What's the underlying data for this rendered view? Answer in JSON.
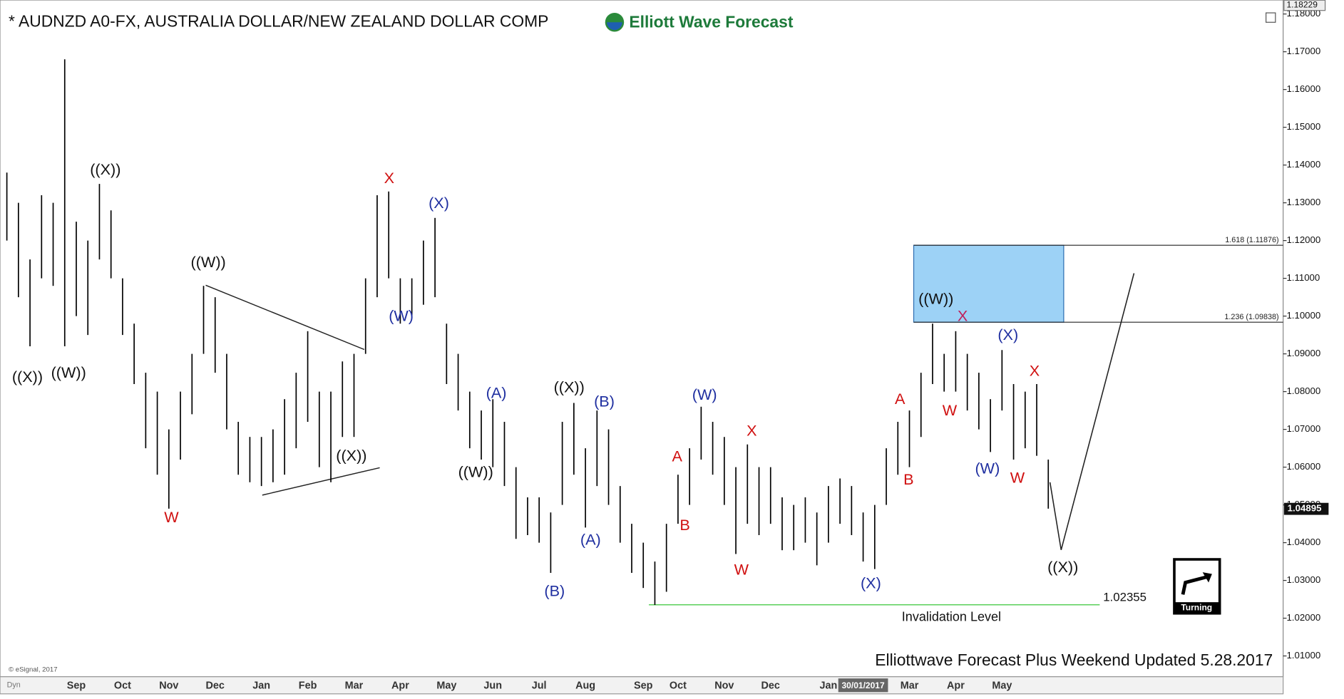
{
  "chart_data": {
    "type": "hilo",
    "title": "* AUDNZD A0-FX, AUSTRALIA DOLLAR/NEW ZEALAND DOLLAR COMP",
    "brand": "Elliott Wave Forecast",
    "footer": "Elliottwave Forecast Plus Weekend Updated 5.28.2017",
    "copyright": "© eSignal, 2017",
    "corner_label": "Dyn",
    "icon_label": "Turning",
    "color": "#000000",
    "categories": [
      null,
      null,
      null,
      null,
      null,
      null,
      "Sep",
      null,
      null,
      null,
      "Oct",
      null,
      null,
      null,
      "Nov",
      null,
      null,
      null,
      "Dec",
      null,
      null,
      null,
      "Jan",
      null,
      null,
      null,
      "Feb",
      null,
      null,
      null,
      "Mar",
      null,
      null,
      null,
      "Apr",
      null,
      null,
      null,
      "May",
      null,
      null,
      null,
      "Jun",
      null,
      null,
      null,
      "Jul",
      null,
      null,
      null,
      "Aug",
      null,
      null,
      null,
      null,
      "Sep",
      null,
      null,
      "Oct",
      null,
      null,
      null,
      "Nov",
      null,
      null,
      null,
      "Dec",
      null,
      null,
      null,
      null,
      "Jan",
      null,
      null,
      "30/01/2017",
      null,
      null,
      null,
      "Mar",
      null,
      null,
      null,
      "Apr",
      null,
      null,
      null,
      "May",
      null,
      null,
      null,
      null
    ],
    "high": [
      1.138,
      1.13,
      1.115,
      1.132,
      1.13,
      1.168,
      1.125,
      1.12,
      1.135,
      1.128,
      1.11,
      1.098,
      1.085,
      1.08,
      1.07,
      1.08,
      1.09,
      1.108,
      1.105,
      1.09,
      1.072,
      1.068,
      1.068,
      1.07,
      1.078,
      1.085,
      1.096,
      1.08,
      1.08,
      1.088,
      1.09,
      1.11,
      1.132,
      1.133,
      1.11,
      1.11,
      1.12,
      1.126,
      1.098,
      1.09,
      1.08,
      1.075,
      1.078,
      1.072,
      1.06,
      1.052,
      1.052,
      1.048,
      1.072,
      1.077,
      1.065,
      1.075,
      1.07,
      1.055,
      1.045,
      1.04,
      1.035,
      1.045,
      1.058,
      1.065,
      1.076,
      1.072,
      1.068,
      1.06,
      1.066,
      1.06,
      1.06,
      1.052,
      1.05,
      1.052,
      1.048,
      1.055,
      1.057,
      1.055,
      1.048,
      1.05,
      1.065,
      1.072,
      1.075,
      1.085,
      1.098,
      1.09,
      1.096,
      1.09,
      1.085,
      1.078,
      1.091,
      1.082,
      1.08,
      1.082,
      1.062
    ],
    "low": [
      1.12,
      1.105,
      1.092,
      1.11,
      1.108,
      1.092,
      1.1,
      1.095,
      1.115,
      1.11,
      1.095,
      1.082,
      1.065,
      1.058,
      1.049,
      1.062,
      1.074,
      1.09,
      1.085,
      1.07,
      1.058,
      1.056,
      1.055,
      1.056,
      1.058,
      1.065,
      1.072,
      1.06,
      1.056,
      1.068,
      1.068,
      1.09,
      1.105,
      1.11,
      1.098,
      1.1,
      1.103,
      1.105,
      1.082,
      1.075,
      1.065,
      1.062,
      1.06,
      1.055,
      1.041,
      1.042,
      1.04,
      1.032,
      1.05,
      1.058,
      1.044,
      1.055,
      1.05,
      1.04,
      1.032,
      1.028,
      1.0235,
      1.027,
      1.045,
      1.05,
      1.062,
      1.058,
      1.05,
      1.037,
      1.045,
      1.042,
      1.045,
      1.038,
      1.038,
      1.04,
      1.034,
      1.04,
      1.045,
      1.042,
      1.035,
      1.033,
      1.05,
      1.058,
      1.06,
      1.068,
      1.082,
      1.08,
      1.08,
      1.075,
      1.07,
      1.064,
      1.075,
      1.062,
      1.065,
      1.063,
      1.049
    ],
    "ylim": [
      1.0045,
      1.1837
    ],
    "yticks": [
      {
        "value": 1.01,
        "label": "1.01000"
      },
      {
        "value": 1.02,
        "label": "1.02000"
      },
      {
        "value": 1.03,
        "label": "1.03000"
      },
      {
        "value": 1.04,
        "label": "1.04000"
      },
      {
        "value": 1.05,
        "label": "1.05000"
      },
      {
        "value": 1.06,
        "label": "1.06000"
      },
      {
        "value": 1.07,
        "label": "1.07000"
      },
      {
        "value": 1.08,
        "label": "1.08000"
      },
      {
        "value": 1.09,
        "label": "1.09000"
      },
      {
        "value": 1.1,
        "label": "1.10000"
      },
      {
        "value": 1.11,
        "label": "1.11000"
      },
      {
        "value": 1.12,
        "label": "1.12000"
      },
      {
        "value": 1.13,
        "label": "1.13000"
      },
      {
        "value": 1.14,
        "label": "1.14000"
      },
      {
        "value": 1.15,
        "label": "1.15000"
      },
      {
        "value": 1.16,
        "label": "1.16000"
      },
      {
        "value": 1.17,
        "label": "1.17000"
      },
      {
        "value": 1.18,
        "label": "1.18000"
      }
    ],
    "top_price": 1.18229,
    "last_price": 1.04895,
    "fib_levels": [
      {
        "value": 1.11876,
        "label": "1.618 (1.11876)"
      },
      {
        "value": 1.09838,
        "label": "1.236 (1.09838)"
      }
    ],
    "invalidation": {
      "value": 1.02355,
      "label": "Invalidation Level"
    },
    "annotations": [
      {
        "text": "((X))",
        "color": "#111111"
      },
      {
        "text": "((W))",
        "color": "#111111"
      },
      {
        "text": "((X))",
        "color": "#111111"
      },
      {
        "text": "W",
        "color": "#d01010"
      },
      {
        "text": "((W))",
        "color": "#111111"
      },
      {
        "text": "((X))",
        "color": "#111111"
      },
      {
        "text": "X",
        "color": "#d01010"
      },
      {
        "text": "(X)",
        "color": "#1f2fa0"
      },
      {
        "text": "(W)",
        "color": "#1f2fa0"
      },
      {
        "text": "((W))",
        "color": "#111111"
      },
      {
        "text": "(A)",
        "color": "#1f2fa0"
      },
      {
        "text": "((X))",
        "color": "#111111"
      },
      {
        "text": "(B)",
        "color": "#1f2fa0"
      },
      {
        "text": "(A)",
        "color": "#1f2fa0"
      },
      {
        "text": "(B)",
        "color": "#1f2fa0"
      },
      {
        "text": "(W)",
        "color": "#1f2fa0"
      },
      {
        "text": "A",
        "color": "#d01010"
      },
      {
        "text": "B",
        "color": "#d01010"
      },
      {
        "text": "X",
        "color": "#d01010"
      },
      {
        "text": "W",
        "color": "#d01010"
      },
      {
        "text": "(X)",
        "color": "#1f2fa0"
      },
      {
        "text": "A",
        "color": "#d01010"
      },
      {
        "text": "B",
        "color": "#d01010"
      },
      {
        "text": "((W))",
        "color": "#111111"
      },
      {
        "text": "X",
        "color": "#c0205a"
      },
      {
        "text": "W",
        "color": "#d01010"
      },
      {
        "text": "(X)",
        "color": "#1f2fa0"
      },
      {
        "text": "X",
        "color": "#d01010"
      },
      {
        "text": "(W)",
        "color": "#1f2fa0"
      },
      {
        "text": "W",
        "color": "#d01010"
      },
      {
        "text": "((X))",
        "color": "#111111"
      }
    ]
  }
}
